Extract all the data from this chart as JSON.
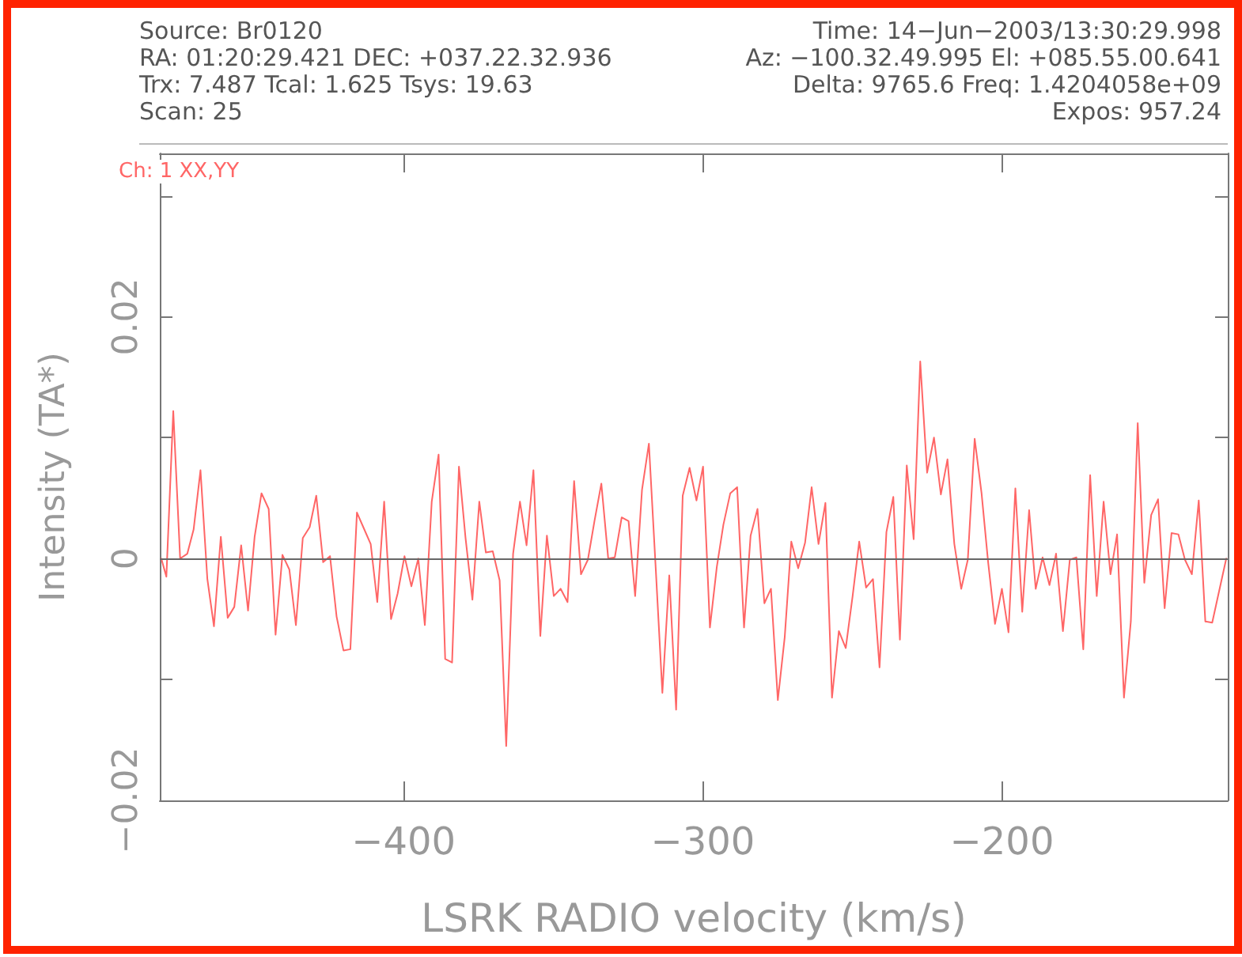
{
  "chart_data": {
    "type": "line",
    "xlabel": "LSRK RADIO velocity (km/s)",
    "ylabel": "Intensity (TA*)",
    "annotations": [
      "Source: Br0120",
      "RA: 01:20:29.421 DEC: +037.22.32.936",
      "Trx: 7.487 Tcal: 1.625 Tsys: 19.63",
      "Scan: 25",
      "Time: 14−Jun−2003/13:30:29.998",
      "Az: −100.32.49.995 El: +085.55.00.641",
      "Delta: 9765.6 Freq: 1.4204058e+09",
      "Expos: 957.24",
      "Ch: 1 XX,YY"
    ],
    "x": [
      -481.0,
      -479.3,
      -477.0,
      -474.7,
      -472.3,
      -470.2,
      -467.9,
      -465.6,
      -463.4,
      -461.1,
      -458.8,
      -456.6,
      -454.3,
      -452.0,
      -449.8,
      -447.5,
      -445.1,
      -442.8,
      -440.5,
      -438.2,
      -436.0,
      -433.7,
      -431.4,
      -429.2,
      -426.9,
      -424.6,
      -422.4,
      -420.1,
      -417.8,
      -415.6,
      -413.3,
      -411.0,
      -408.8,
      -406.5,
      -404.2,
      -402.0,
      -399.7,
      -397.4,
      -395.1,
      -392.9,
      -390.6,
      -388.3,
      -386.1,
      -383.8,
      -381.5,
      -379.3,
      -377.0,
      -374.7,
      -372.5,
      -370.2,
      -367.9,
      -365.7,
      -363.4,
      -361.1,
      -358.9,
      -356.6,
      -354.3,
      -352.1,
      -349.8,
      -347.5,
      -345.2,
      -343.0,
      -340.7,
      -338.4,
      -336.2,
      -333.9,
      -331.6,
      -329.4,
      -327.1,
      -324.8,
      -322.6,
      -320.3,
      -318.0,
      -315.7,
      -313.5,
      -311.2,
      -308.9,
      -306.7,
      -304.4,
      -302.1,
      -299.9,
      -297.6,
      -295.3,
      -293.1,
      -290.8,
      -288.5,
      -286.2,
      -284.0,
      -281.7,
      -279.4,
      -277.2,
      -274.9,
      -272.6,
      -270.4,
      -268.1,
      -265.8,
      -263.6,
      -261.3,
      -259.0,
      -256.8,
      -254.5,
      -252.2,
      -249.9,
      -247.7,
      -245.4,
      -243.1,
      -240.9,
      -238.6,
      -236.3,
      -234.1,
      -231.8,
      -229.5,
      -227.3,
      -225.0,
      -222.7,
      -220.4,
      -218.2,
      -215.9,
      -213.6,
      -211.4,
      -209.1,
      -206.8,
      -204.6,
      -202.3,
      -200.0,
      -197.8,
      -195.5,
      -193.2,
      -190.9,
      -188.7,
      -186.4,
      -184.1,
      -181.9,
      -179.6,
      -177.3,
      -175.1,
      -172.8,
      -170.5,
      -168.3,
      -166.0,
      -163.7,
      -161.5,
      -159.2,
      -156.9,
      -154.6,
      -152.4,
      -150.1,
      -147.8,
      -145.6,
      -143.3,
      -141.0,
      -138.8,
      -136.5,
      -134.2,
      -132.0,
      -129.7,
      -125.0
    ],
    "series": [
      {
        "color": "#ff6666",
        "values": [
          0,
          -0.0015,
          0.0122,
          0,
          0.0004,
          0.0024,
          0.0073,
          -0.0017,
          -0.0056,
          0.0018,
          -0.0049,
          -0.004,
          0.0011,
          -0.0043,
          0.0018,
          0.0054,
          0.0041,
          -0.0063,
          0.0003,
          -0.0009,
          -0.0055,
          0.0017,
          0.0026,
          0.0052,
          -0.0003,
          0.0002,
          -0.0048,
          -0.0076,
          -0.0075,
          0.0038,
          0.0025,
          0.0012,
          -0.0036,
          0.0047,
          -0.005,
          -0.0029,
          0.0002,
          -0.0023,
          0,
          -0.0055,
          0.0047,
          0.0086,
          -0.0083,
          -0.0086,
          0.0076,
          0.0017,
          -0.0034,
          0.0047,
          0.0005,
          0.0006,
          -0.0018,
          -0.0155,
          0.0004,
          0.0047,
          0.0011,
          0.0073,
          -0.0064,
          0.0019,
          -0.0031,
          -0.0025,
          -0.0036,
          0.0064,
          -0.0013,
          -0.0001,
          0.0031,
          0.0062,
          0,
          0.0001,
          0.0034,
          0.0031,
          -0.0031,
          0.0057,
          0.0095,
          -0.0009,
          -0.0111,
          -0.0014,
          -0.0125,
          0.0052,
          0.0075,
          0.0048,
          0.0076,
          -0.0057,
          -0.0007,
          0.0028,
          0.0054,
          0.0059,
          -0.0057,
          0.0019,
          0.0041,
          -0.0037,
          -0.0025,
          -0.0117,
          -0.0065,
          0.0014,
          -0.0008,
          0.0013,
          0.0059,
          0.0012,
          0.0046,
          -0.0115,
          -0.006,
          -0.0074,
          -0.0031,
          0.0014,
          -0.0024,
          -0.0017,
          -0.009,
          0.0022,
          0.0051,
          -0.0067,
          0.0077,
          0.0016,
          0.0163,
          0.0071,
          0.01,
          0.0053,
          0.0082,
          0.0012,
          -0.0025,
          -0.0001,
          0.0099,
          0.0054,
          -0.0003,
          -0.0054,
          -0.0025,
          -0.0061,
          0.0058,
          -0.0044,
          0.004,
          -0.0025,
          0.0001,
          -0.0022,
          0.0004,
          -0.006,
          -0.0001,
          0.0001,
          -0.0075,
          0.0069,
          -0.0031,
          0.0047,
          -0.0013,
          0.002,
          -0.0115,
          -0.0052,
          0.0112,
          -0.002,
          0.0036,
          0.0049,
          -0.0041,
          0.0021,
          0.002,
          -0.0001,
          -0.0013,
          0.0048,
          -0.0052,
          -0.0053,
          0
        ]
      }
    ],
    "xlim": [
      -481.5,
      -124.5
    ],
    "xticks": [
      {
        "value": -400,
        "label": "−400"
      },
      {
        "value": -300,
        "label": "−300"
      },
      {
        "value": -200,
        "label": "−200"
      }
    ],
    "ylim": [
      -0.02,
      0.0335
    ],
    "yticks": [
      {
        "value": -0.02,
        "label": "−0.02"
      },
      {
        "value": -0.01,
        "label": null
      },
      {
        "value": 0,
        "label": "0"
      },
      {
        "value": 0.01,
        "label": null
      },
      {
        "value": 0.02,
        "label": "0.02"
      },
      {
        "value": 0.03,
        "label": null
      }
    ],
    "ref_lines": [
      {
        "axis": "y",
        "value": 0,
        "color": "#666666"
      }
    ],
    "grid": false,
    "marker": "none",
    "line_style": "solid"
  }
}
